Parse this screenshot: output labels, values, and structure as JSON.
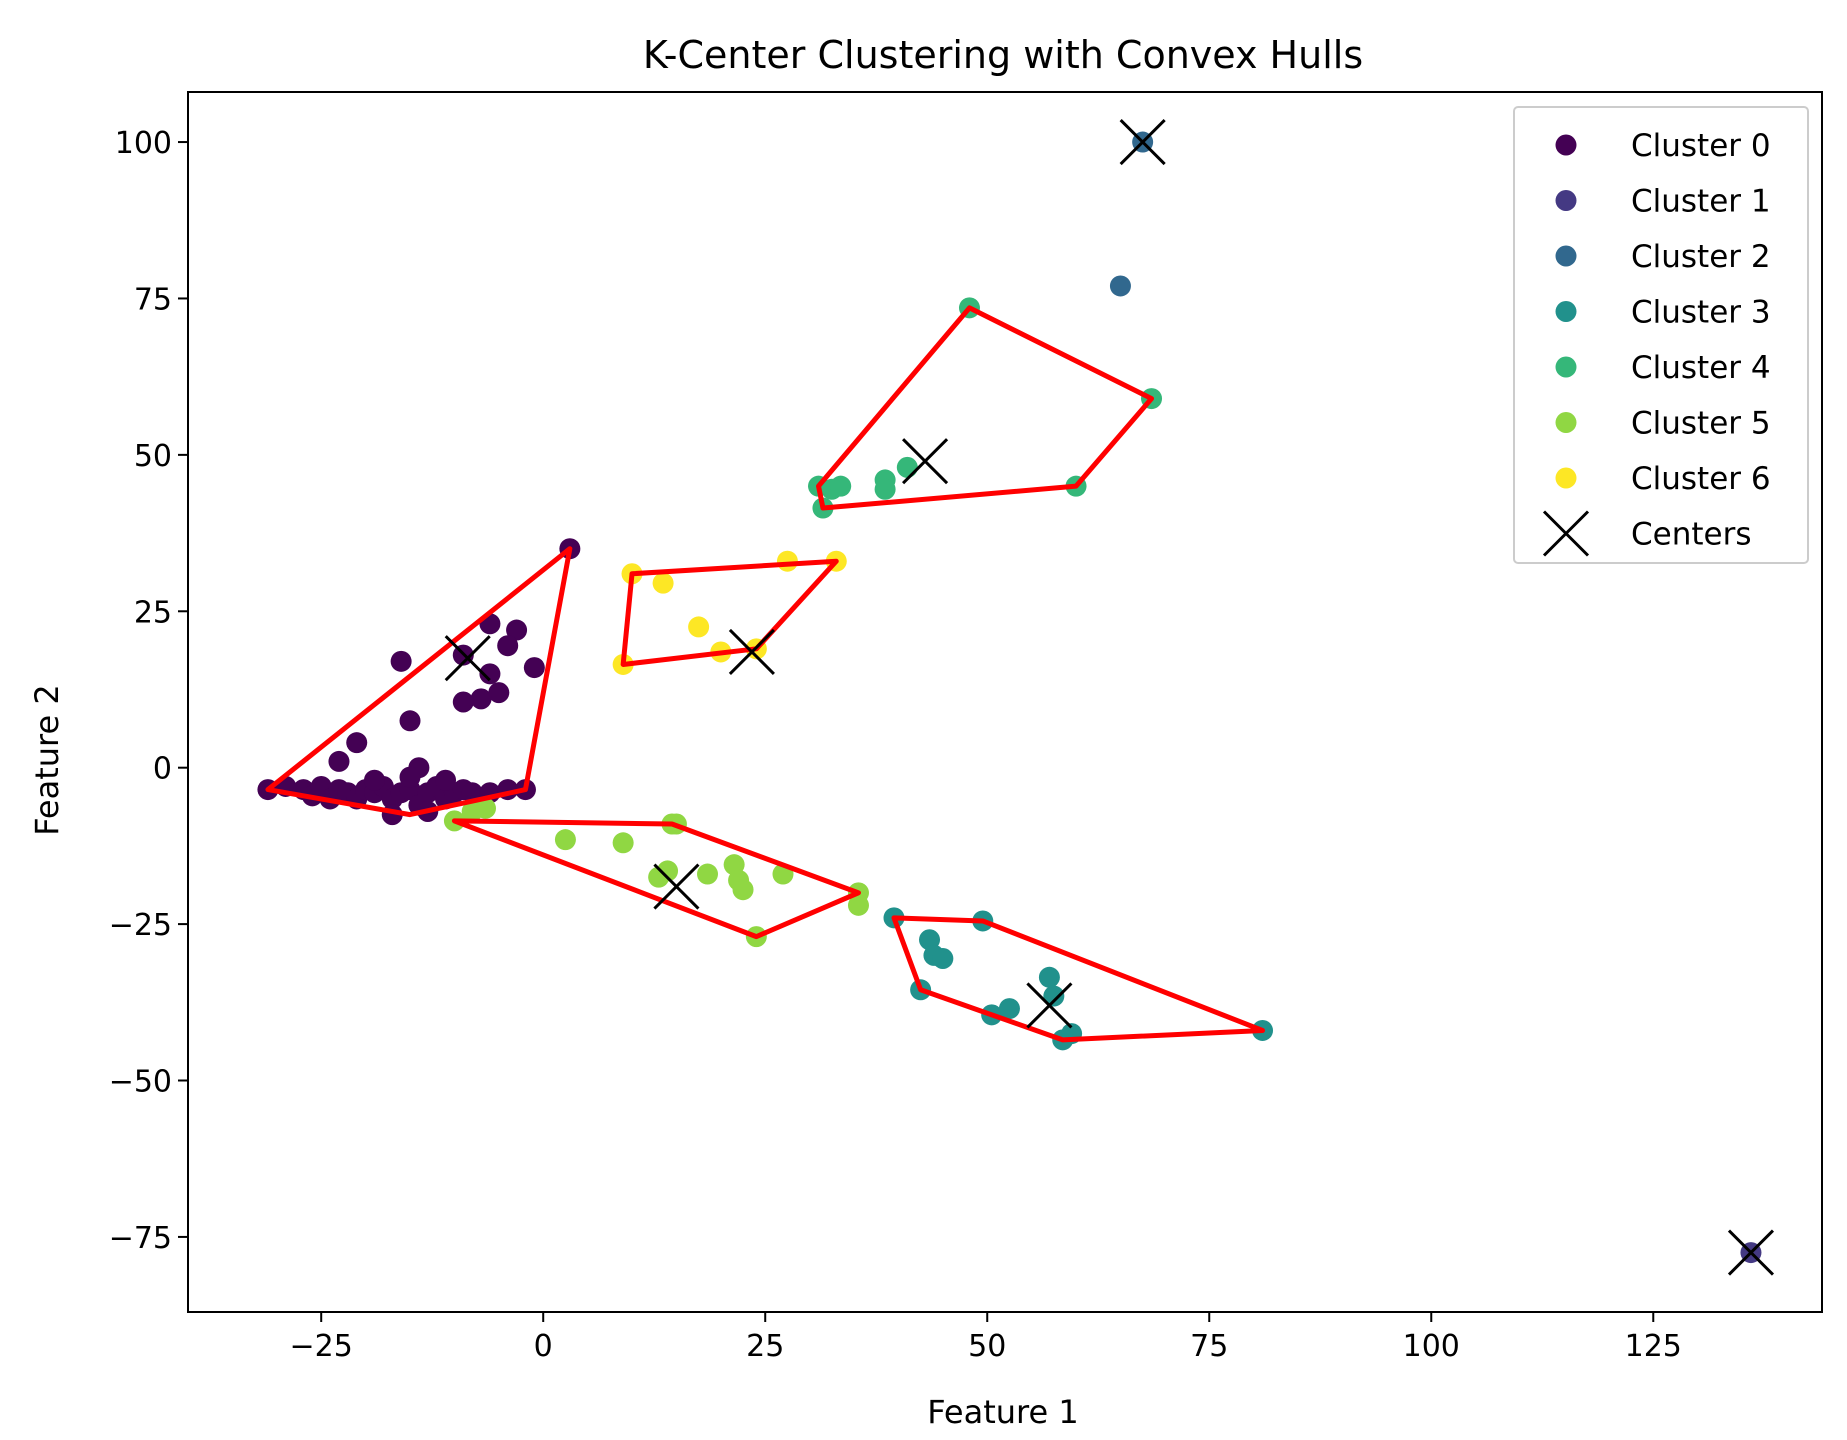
{
  "chart_data": {
    "type": "scatter",
    "title": "K-Center Clustering with Convex Hulls",
    "xlabel": "Feature 1",
    "ylabel": "Feature 2",
    "xlim": [
      -40,
      144
    ],
    "ylim": [
      -87,
      108
    ],
    "xticks": [
      -25,
      0,
      25,
      50,
      75,
      100,
      125
    ],
    "yticks": [
      100,
      75,
      50,
      25,
      0,
      -25,
      -50,
      -75
    ],
    "xtick_labels": [
      "−25",
      "0",
      "25",
      "50",
      "75",
      "100",
      "125"
    ],
    "ytick_labels": [
      "100",
      "75",
      "50",
      "25",
      "0",
      "−25",
      "−50",
      "−75"
    ],
    "grid": false,
    "legend_position": "top-right",
    "hull_color": "#ff0000",
    "series": [
      {
        "name": "Cluster 0",
        "color": "#440154",
        "points": [
          [
            3,
            35
          ],
          [
            -6,
            23
          ],
          [
            -3,
            22
          ],
          [
            -4,
            19.5
          ],
          [
            -16,
            17
          ],
          [
            -9,
            18
          ],
          [
            -6,
            15
          ],
          [
            -1,
            16
          ],
          [
            -5,
            12
          ],
          [
            -7,
            11
          ],
          [
            -9,
            10.5
          ],
          [
            -15,
            7.5
          ],
          [
            -21,
            4
          ],
          [
            -23,
            1
          ],
          [
            -14,
            0
          ],
          [
            -31,
            -3.5
          ],
          [
            -29,
            -3
          ],
          [
            -27,
            -3.5
          ],
          [
            -26,
            -4.5
          ],
          [
            -25,
            -3
          ],
          [
            -24,
            -5
          ],
          [
            -23,
            -3.5
          ],
          [
            -22,
            -4
          ],
          [
            -21,
            -5
          ],
          [
            -20,
            -3.5
          ],
          [
            -19,
            -4
          ],
          [
            -18,
            -3
          ],
          [
            -17,
            -5
          ],
          [
            -16,
            -4
          ],
          [
            -15,
            -3.5
          ],
          [
            -14,
            -6
          ],
          [
            -13,
            -4
          ],
          [
            -12,
            -3
          ],
          [
            -11,
            -5
          ],
          [
            -10,
            -4
          ],
          [
            -9,
            -3.5
          ],
          [
            -8,
            -4
          ],
          [
            -7,
            -5
          ],
          [
            -6,
            -4
          ],
          [
            -4,
            -3.5
          ],
          [
            -2,
            -3.5
          ],
          [
            -17,
            -7.5
          ],
          [
            -13,
            -7
          ],
          [
            -19,
            -2
          ],
          [
            -15,
            -1.5
          ],
          [
            -11,
            -2
          ]
        ]
      },
      {
        "name": "Cluster 1",
        "color": "#443983",
        "points": [
          [
            136,
            -77.5
          ]
        ]
      },
      {
        "name": "Cluster 2",
        "color": "#31688e",
        "points": [
          [
            67.5,
            100
          ],
          [
            65,
            77
          ]
        ]
      },
      {
        "name": "Cluster 3",
        "color": "#21918c",
        "points": [
          [
            39.5,
            -24
          ],
          [
            42.5,
            -35.5
          ],
          [
            43.5,
            -27.5
          ],
          [
            44,
            -30
          ],
          [
            45,
            -30.5
          ],
          [
            49.5,
            -24.5
          ],
          [
            50.5,
            -39.5
          ],
          [
            52.5,
            -38.5
          ],
          [
            57,
            -33.5
          ],
          [
            57.5,
            -36.5
          ],
          [
            58.5,
            -43.5
          ],
          [
            59.5,
            -42.5
          ],
          [
            81,
            -42
          ]
        ]
      },
      {
        "name": "Cluster 4",
        "color": "#35b779",
        "points": [
          [
            48,
            73.5
          ],
          [
            68.5,
            59
          ],
          [
            60,
            45
          ],
          [
            31,
            45
          ],
          [
            31.5,
            41.5
          ],
          [
            32.5,
            44.5
          ],
          [
            33.5,
            45
          ],
          [
            38.5,
            46
          ],
          [
            38.5,
            44.5
          ],
          [
            41,
            48
          ]
        ]
      },
      {
        "name": "Cluster 5",
        "color": "#90d743",
        "points": [
          [
            -10,
            -8.5
          ],
          [
            -8,
            -7
          ],
          [
            -6.5,
            -6.5
          ],
          [
            2.5,
            -11.5
          ],
          [
            9,
            -12
          ],
          [
            13,
            -17.5
          ],
          [
            14,
            -16.5
          ],
          [
            14.5,
            -9
          ],
          [
            18.5,
            -17
          ],
          [
            21.5,
            -15.5
          ],
          [
            22,
            -18
          ],
          [
            22.5,
            -19.5
          ],
          [
            24,
            -27
          ],
          [
            27,
            -17
          ],
          [
            35.5,
            -20
          ],
          [
            35.5,
            -22
          ],
          [
            15,
            -9
          ]
        ]
      },
      {
        "name": "Cluster 6",
        "color": "#fde725",
        "points": [
          [
            10,
            31
          ],
          [
            13.5,
            29.5
          ],
          [
            17.5,
            22.5
          ],
          [
            27.5,
            33
          ],
          [
            33,
            33
          ],
          [
            9,
            16.5
          ],
          [
            20,
            18.5
          ],
          [
            24,
            19
          ]
        ]
      }
    ],
    "centers": {
      "name": "Centers",
      "color": "#000000",
      "points": [
        [
          67.5,
          100
        ],
        [
          43,
          49
        ],
        [
          23.5,
          18.5
        ],
        [
          -8.5,
          17.5
        ],
        [
          15,
          -19
        ],
        [
          57,
          -38
        ],
        [
          136,
          -77.5
        ]
      ]
    },
    "hulls": [
      [
        [
          3,
          35
        ],
        [
          -31,
          -3.5
        ],
        [
          -15,
          -7.5
        ],
        [
          -2,
          -3.5
        ]
      ],
      [
        [
          10,
          31
        ],
        [
          33,
          33
        ],
        [
          24,
          19
        ],
        [
          9,
          16.5
        ]
      ],
      [
        [
          48,
          73.5
        ],
        [
          68.5,
          59
        ],
        [
          60,
          45
        ],
        [
          31.5,
          41.5
        ],
        [
          31,
          45
        ]
      ],
      [
        [
          -10,
          -8.5
        ],
        [
          14.5,
          -9
        ],
        [
          35.5,
          -20
        ],
        [
          24,
          -27
        ]
      ],
      [
        [
          39.5,
          -24
        ],
        [
          49.5,
          -24.5
        ],
        [
          81,
          -42
        ],
        [
          58.5,
          -43.5
        ],
        [
          42.5,
          -35.5
        ]
      ]
    ]
  }
}
